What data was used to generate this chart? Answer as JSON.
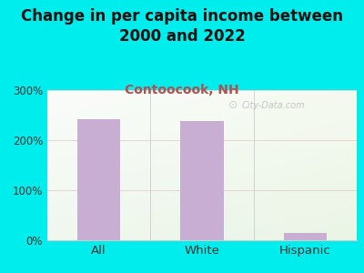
{
  "title": "Change in per capita income between\n2000 and 2022",
  "subtitle": "Contoocook, NH",
  "categories": [
    "All",
    "White",
    "Hispanic"
  ],
  "values": [
    242,
    238,
    15
  ],
  "bar_color": "#c9aed4",
  "title_fontsize": 12,
  "subtitle_fontsize": 10,
  "subtitle_color": "#b05050",
  "title_color": "#111111",
  "bg_color": "#00eded",
  "ylim": [
    0,
    300
  ],
  "yticks": [
    0,
    100,
    200,
    300
  ],
  "ytick_labels": [
    "0%",
    "100%",
    "200%",
    "300%"
  ],
  "grid_color": "#ddbbbb",
  "watermark": "City-Data.com"
}
